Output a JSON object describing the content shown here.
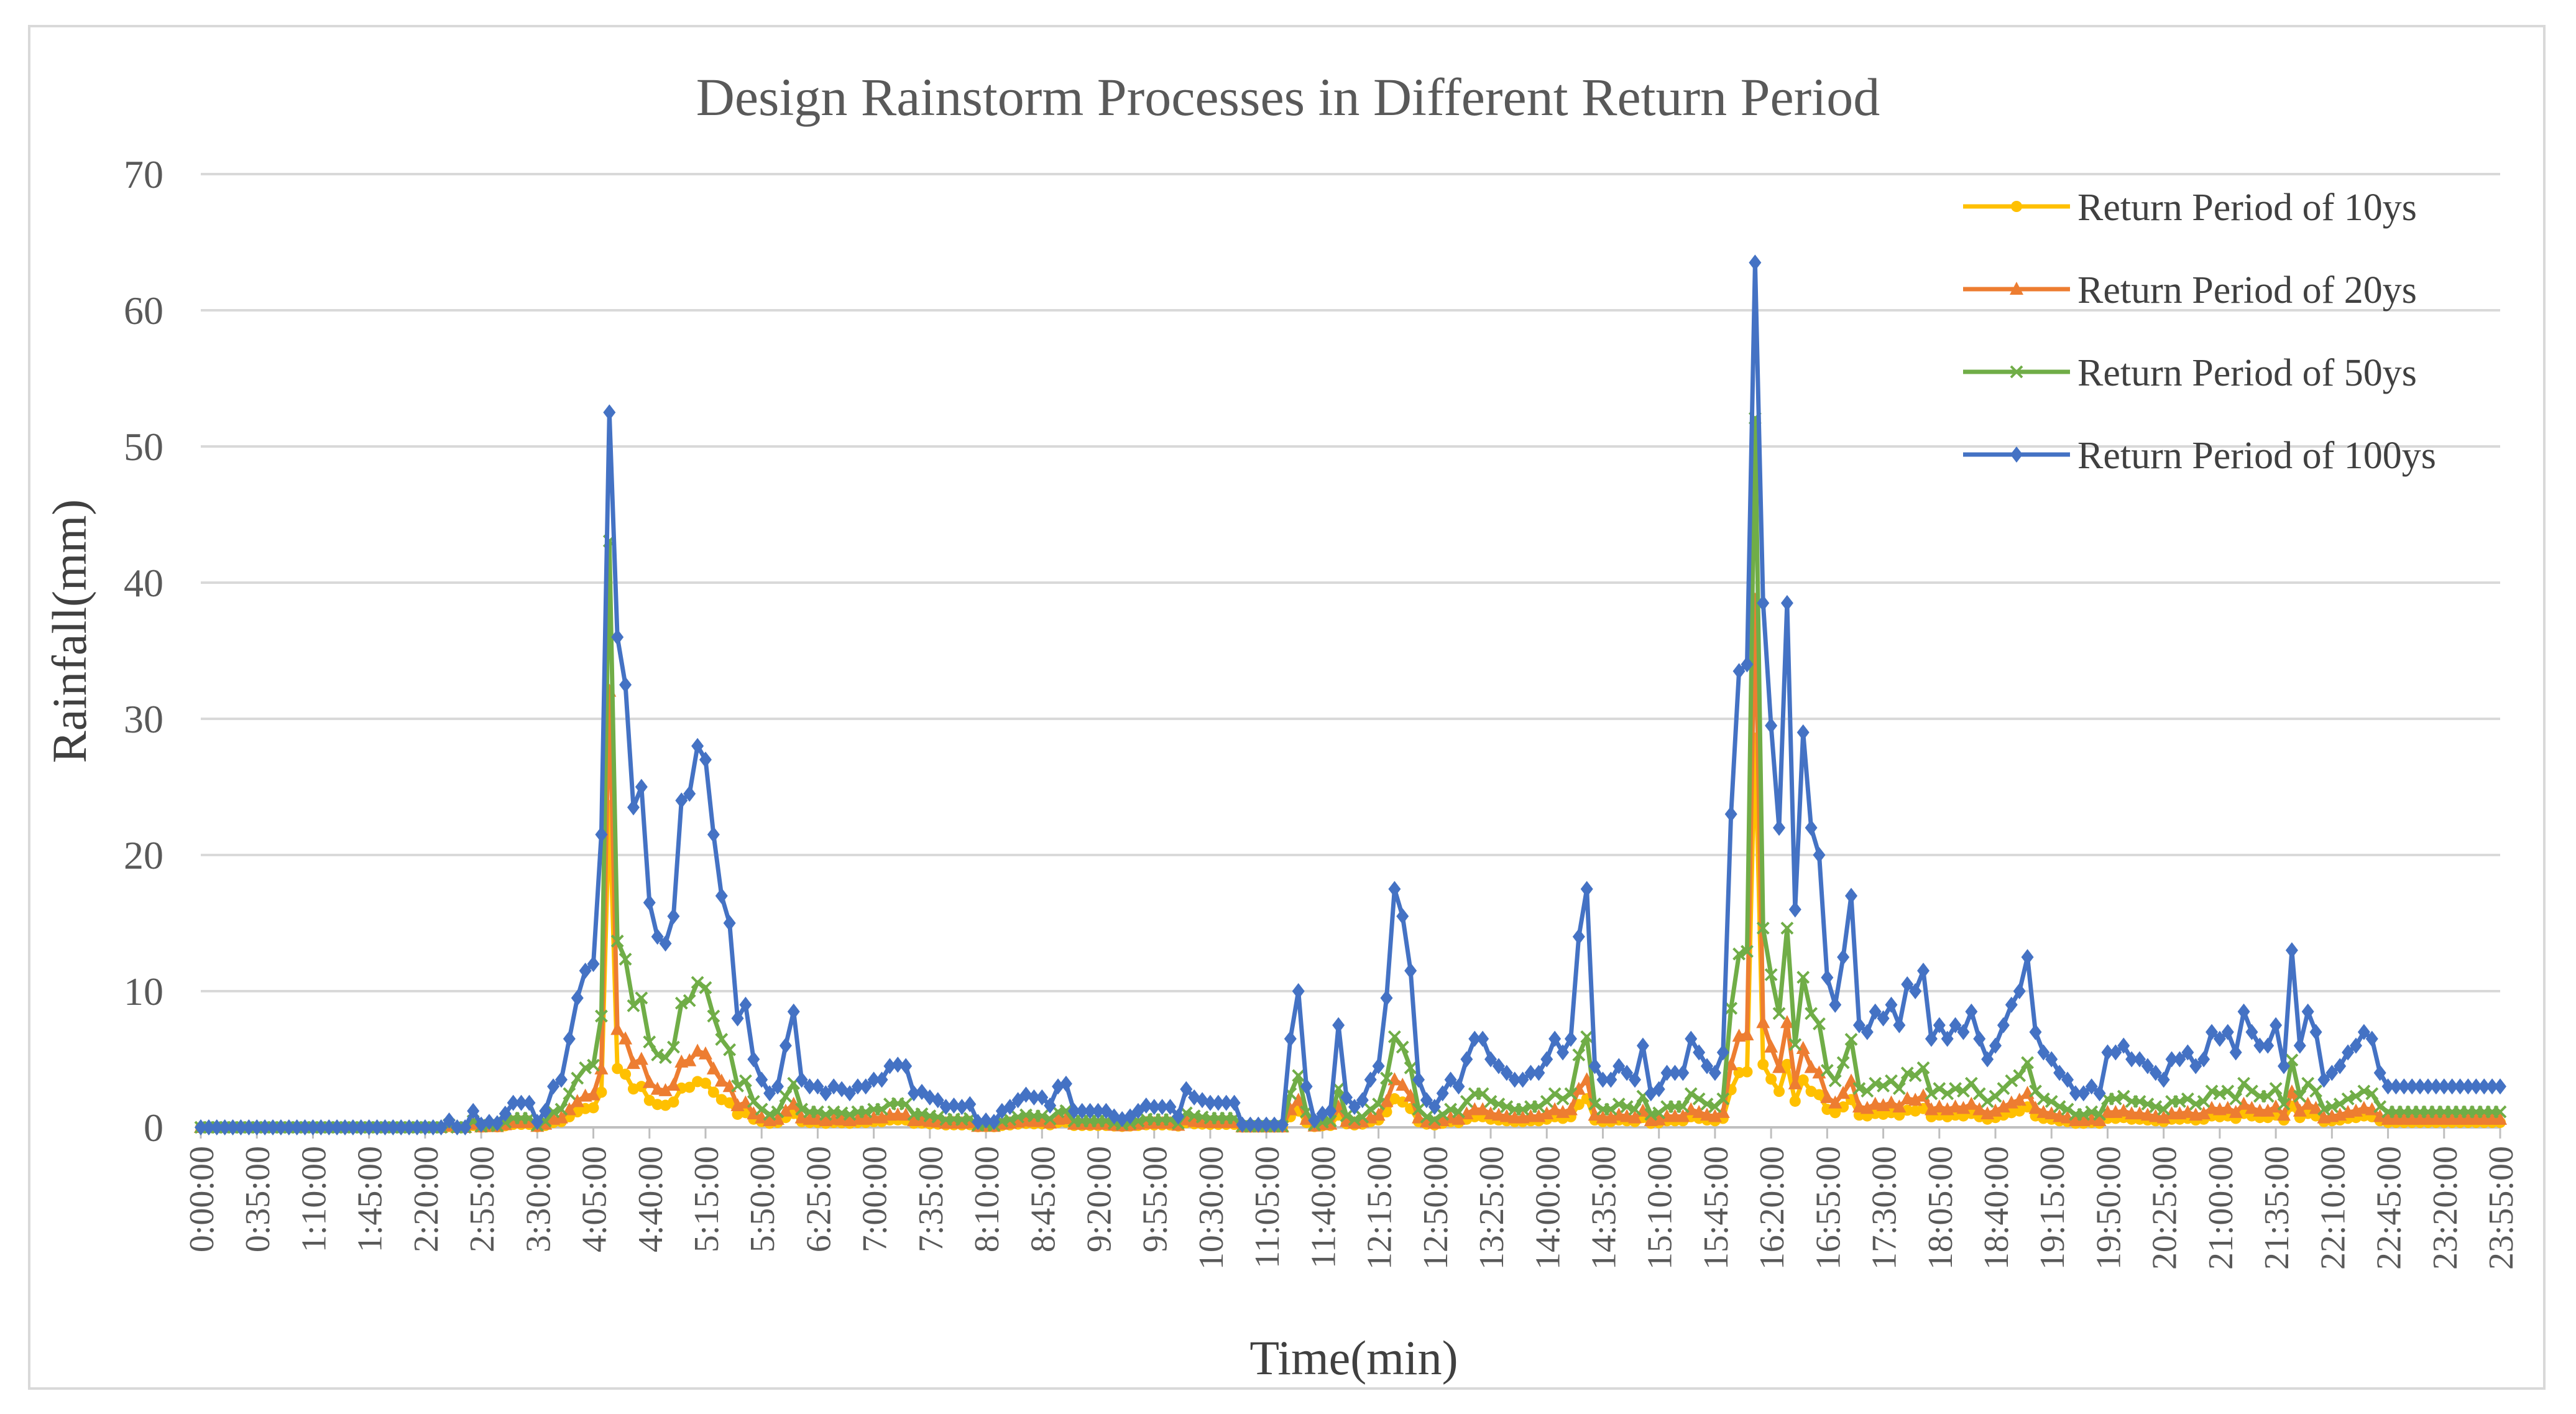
{
  "chart_data": {
    "type": "line",
    "title": "Design Rainstorm Processes in Different Return Period",
    "xlabel": "Time(min)",
    "ylabel": "Rainfall(mm)",
    "ylim": [
      0,
      70
    ],
    "yticks": [
      0,
      10,
      20,
      30,
      40,
      50,
      60,
      70
    ],
    "interval_min": 5,
    "x_tick_labels": [
      "0:00:00",
      "0:35:00",
      "1:10:00",
      "1:45:00",
      "2:20:00",
      "2:55:00",
      "3:30:00",
      "4:05:00",
      "4:40:00",
      "5:15:00",
      "5:50:00",
      "6:25:00",
      "7:00:00",
      "7:35:00",
      "8:10:00",
      "8:45:00",
      "9:20:00",
      "9:55:00",
      "10:30:00",
      "11:05:00",
      "11:40:00",
      "12:15:00",
      "12:50:00",
      "13:25:00",
      "14:00:00",
      "14:35:00",
      "15:10:00",
      "15:45:00",
      "16:20:00",
      "16:55:00",
      "17:30:00",
      "18:05:00",
      "18:40:00",
      "19:15:00",
      "19:50:00",
      "20:25:00",
      "21:00:00",
      "21:35:00",
      "22:10:00",
      "22:45:00",
      "23:20:00",
      "23:55:00"
    ],
    "legend_position": "top-right",
    "grid": true,
    "series": [
      {
        "name": "Return Period of 10ys",
        "color": "#ffc000",
        "marker": "circle"
      },
      {
        "name": "Return Period of 20ys",
        "color": "#ed7d31",
        "marker": "triangle"
      },
      {
        "name": "Return Period of 50ys",
        "color": "#70ad47",
        "marker": "x"
      },
      {
        "name": "Return Period of 100ys",
        "color": "#4472c4",
        "marker": "diamond",
        "keypoints": [
          [
            0,
            0
          ],
          [
            30,
            0
          ],
          [
            31,
            0.5
          ],
          [
            32,
            0
          ],
          [
            33,
            0
          ],
          [
            34,
            1.2
          ],
          [
            35,
            0.2
          ],
          [
            36,
            0.4
          ],
          [
            37,
            0.3
          ],
          [
            38,
            1
          ],
          [
            39,
            1.8
          ],
          [
            40,
            1.8
          ],
          [
            41,
            1.8
          ],
          [
            42,
            0.4
          ],
          [
            43,
            1.2
          ],
          [
            44,
            3
          ],
          [
            45,
            3.5
          ],
          [
            46,
            6.5
          ],
          [
            47,
            9.5
          ],
          [
            48,
            11.5
          ],
          [
            49,
            12
          ],
          [
            50,
            21.5
          ],
          [
            51,
            52.5
          ],
          [
            52,
            36
          ],
          [
            53,
            32.5
          ],
          [
            54,
            23.5
          ],
          [
            55,
            25
          ],
          [
            56,
            16.5
          ],
          [
            57,
            14
          ],
          [
            58,
            13.5
          ],
          [
            59,
            15.5
          ],
          [
            60,
            24
          ],
          [
            61,
            24.5
          ],
          [
            62,
            28
          ],
          [
            63,
            27
          ],
          [
            64,
            21.5
          ],
          [
            65,
            17
          ],
          [
            66,
            15
          ],
          [
            67,
            8
          ],
          [
            68,
            9
          ],
          [
            69,
            5
          ],
          [
            70,
            3.5
          ],
          [
            71,
            2.5
          ],
          [
            72,
            3
          ],
          [
            73,
            6
          ],
          [
            74,
            8.5
          ],
          [
            75,
            3.5
          ],
          [
            76,
            3
          ],
          [
            77,
            3
          ],
          [
            78,
            2.5
          ],
          [
            79,
            3
          ],
          [
            80,
            2.8
          ],
          [
            81,
            2.5
          ],
          [
            82,
            3
          ],
          [
            83,
            3
          ],
          [
            84,
            3.5
          ],
          [
            85,
            3.5
          ],
          [
            86,
            4.5
          ],
          [
            87,
            4.6
          ],
          [
            88,
            4.5
          ],
          [
            89,
            2.5
          ],
          [
            90,
            2.6
          ],
          [
            91,
            2.2
          ],
          [
            92,
            2
          ],
          [
            93,
            1.5
          ],
          [
            94,
            1.6
          ],
          [
            95,
            1.5
          ],
          [
            96,
            1.7
          ],
          [
            97,
            0.4
          ],
          [
            98,
            0.5
          ],
          [
            99,
            0.4
          ],
          [
            100,
            1.2
          ],
          [
            101,
            1.5
          ],
          [
            102,
            2
          ],
          [
            103,
            2.4
          ],
          [
            104,
            2.2
          ],
          [
            105,
            2.2
          ],
          [
            106,
            1.6
          ],
          [
            107,
            3
          ],
          [
            108,
            3.2
          ],
          [
            109,
            1.2
          ],
          [
            110,
            1.2
          ],
          [
            111,
            1.2
          ],
          [
            112,
            1.2
          ],
          [
            113,
            1.2
          ],
          [
            114,
            0.8
          ],
          [
            115,
            0.6
          ],
          [
            116,
            0.8
          ],
          [
            117,
            1.2
          ],
          [
            118,
            1.6
          ],
          [
            119,
            1.5
          ],
          [
            120,
            1.5
          ],
          [
            121,
            1.5
          ],
          [
            122,
            0.8
          ],
          [
            123,
            2.8
          ],
          [
            124,
            2.2
          ],
          [
            125,
            2
          ],
          [
            126,
            1.8
          ],
          [
            127,
            1.8
          ],
          [
            128,
            1.8
          ],
          [
            129,
            1.8
          ],
          [
            130,
            0.2
          ],
          [
            131,
            0.2
          ],
          [
            132,
            0.2
          ],
          [
            133,
            0.2
          ],
          [
            134,
            0.2
          ],
          [
            135,
            0.2
          ],
          [
            136,
            6.5
          ],
          [
            137,
            10
          ],
          [
            138,
            3
          ],
          [
            139,
            0.5
          ],
          [
            140,
            1
          ],
          [
            141,
            1.2
          ],
          [
            142,
            7.5
          ],
          [
            143,
            2.2
          ],
          [
            144,
            1.5
          ],
          [
            145,
            2
          ],
          [
            146,
            3.5
          ],
          [
            147,
            4.5
          ],
          [
            148,
            9.5
          ],
          [
            149,
            17.5
          ],
          [
            150,
            15.5
          ],
          [
            151,
            11.5
          ],
          [
            152,
            3.5
          ],
          [
            153,
            2
          ],
          [
            154,
            1.5
          ],
          [
            155,
            2.5
          ],
          [
            156,
            3.5
          ],
          [
            157,
            3
          ],
          [
            158,
            5
          ],
          [
            159,
            6.5
          ],
          [
            160,
            6.5
          ],
          [
            161,
            5
          ],
          [
            162,
            4.5
          ],
          [
            163,
            4
          ],
          [
            164,
            3.5
          ],
          [
            165,
            3.5
          ],
          [
            166,
            4
          ],
          [
            167,
            4
          ],
          [
            168,
            5
          ],
          [
            169,
            6.5
          ],
          [
            170,
            5.5
          ],
          [
            171,
            6.5
          ],
          [
            172,
            14
          ],
          [
            173,
            17.5
          ],
          [
            174,
            4.5
          ],
          [
            175,
            3.5
          ],
          [
            176,
            3.5
          ],
          [
            177,
            4.5
          ],
          [
            178,
            4
          ],
          [
            179,
            3.5
          ],
          [
            180,
            6
          ],
          [
            181,
            2.5
          ],
          [
            182,
            2.8
          ],
          [
            183,
            4
          ],
          [
            184,
            4
          ],
          [
            185,
            4
          ],
          [
            186,
            6.5
          ],
          [
            187,
            5.5
          ],
          [
            188,
            4.5
          ],
          [
            189,
            4
          ],
          [
            190,
            5.5
          ],
          [
            191,
            23
          ],
          [
            192,
            33.5
          ],
          [
            193,
            34
          ],
          [
            194,
            63.5
          ],
          [
            195,
            38.5
          ],
          [
            196,
            29.5
          ],
          [
            197,
            22
          ],
          [
            198,
            38.5
          ],
          [
            199,
            16
          ],
          [
            200,
            29
          ],
          [
            201,
            22
          ],
          [
            202,
            20
          ],
          [
            203,
            11
          ],
          [
            204,
            9
          ],
          [
            205,
            12.5
          ],
          [
            206,
            17
          ],
          [
            207,
            7.5
          ],
          [
            208,
            7
          ],
          [
            209,
            8.5
          ],
          [
            210,
            8
          ],
          [
            211,
            9
          ],
          [
            212,
            7.5
          ],
          [
            213,
            10.5
          ],
          [
            214,
            10
          ],
          [
            215,
            11.5
          ],
          [
            216,
            6.5
          ],
          [
            217,
            7.5
          ],
          [
            218,
            6.5
          ],
          [
            219,
            7.5
          ],
          [
            220,
            7
          ],
          [
            221,
            8.5
          ],
          [
            222,
            6.5
          ],
          [
            223,
            5
          ],
          [
            224,
            6
          ],
          [
            225,
            7.5
          ],
          [
            226,
            9
          ],
          [
            227,
            10
          ],
          [
            228,
            12.5
          ],
          [
            229,
            7
          ],
          [
            230,
            5.5
          ],
          [
            231,
            5
          ],
          [
            232,
            4
          ],
          [
            233,
            3.5
          ],
          [
            234,
            2.5
          ],
          [
            235,
            2.5
          ],
          [
            236,
            3
          ],
          [
            237,
            2.5
          ],
          [
            238,
            5.5
          ],
          [
            239,
            5.5
          ],
          [
            240,
            6
          ],
          [
            241,
            5
          ],
          [
            242,
            5
          ],
          [
            243,
            4.5
          ],
          [
            244,
            4
          ],
          [
            245,
            3.5
          ],
          [
            246,
            5
          ],
          [
            247,
            5
          ],
          [
            248,
            5.5
          ],
          [
            249,
            4.5
          ],
          [
            250,
            5
          ],
          [
            251,
            7
          ],
          [
            252,
            6.5
          ],
          [
            253,
            7
          ],
          [
            254,
            5.5
          ],
          [
            255,
            8.5
          ],
          [
            256,
            7
          ],
          [
            257,
            6
          ],
          [
            258,
            6
          ],
          [
            259,
            7.5
          ],
          [
            260,
            4.5
          ],
          [
            261,
            13
          ],
          [
            262,
            6
          ],
          [
            263,
            8.5
          ],
          [
            264,
            7
          ],
          [
            265,
            3.5
          ],
          [
            266,
            4
          ],
          [
            267,
            4.5
          ],
          [
            268,
            5.5
          ],
          [
            269,
            6
          ],
          [
            270,
            7
          ],
          [
            271,
            6.5
          ],
          [
            272,
            4
          ],
          [
            273,
            3
          ]
        ]
      }
    ]
  }
}
